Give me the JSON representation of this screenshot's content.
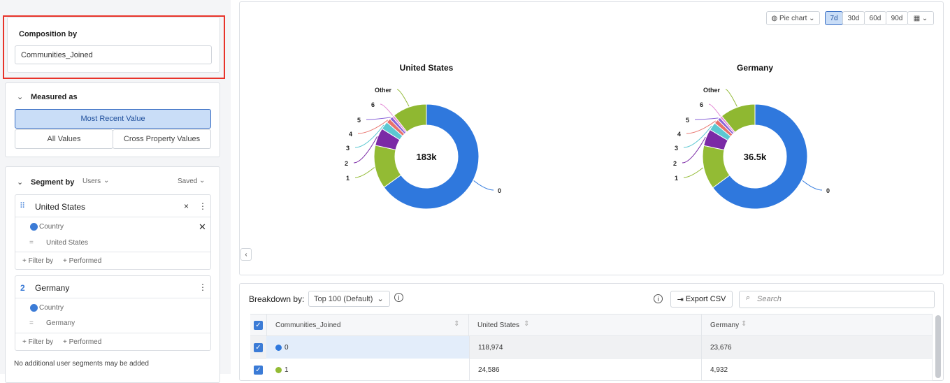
{
  "sidebar": {
    "composition": {
      "title": "Composition by",
      "property": "Communities_Joined"
    },
    "measured": {
      "title": "Measured as",
      "options": [
        "Most Recent Value",
        "All Values",
        "Cross Property Values"
      ],
      "selected": 0
    },
    "segment": {
      "title": "Segment by",
      "scope": "Users",
      "saved": "Saved",
      "segments": [
        {
          "name": "United States",
          "property": "Country",
          "operator": "=",
          "value": "United States",
          "actions": [
            "+ Filter by",
            "+ Performed"
          ]
        },
        {
          "number": "2",
          "name": "Germany",
          "property": "Country",
          "operator": "=",
          "value": "Germany",
          "actions": [
            "+ Filter by",
            "+ Performed"
          ]
        }
      ],
      "note": "No additional user segments may be added"
    }
  },
  "toolbar": {
    "chart_type": "Pie chart",
    "ranges": [
      "7d",
      "30d",
      "60d",
      "90d"
    ],
    "active_range": 0
  },
  "charts": [
    {
      "title": "United States",
      "total_label": "183k",
      "slices": [
        {
          "label": "0",
          "value": 118974,
          "color": "#2f78dd"
        },
        {
          "label": "1",
          "value": 24586,
          "color": "#93bb34"
        },
        {
          "label": "2",
          "value": 10000,
          "color": "#7b2aa6"
        },
        {
          "label": "3",
          "value": 4500,
          "color": "#5cc8d2"
        },
        {
          "label": "4",
          "value": 2500,
          "color": "#e8716b"
        },
        {
          "label": "5",
          "value": 1800,
          "color": "#8a63d8"
        },
        {
          "label": "6",
          "value": 1200,
          "color": "#e48ad6"
        },
        {
          "label": "Other",
          "value": 19440,
          "color": "#8fb831"
        }
      ]
    },
    {
      "title": "Germany",
      "total_label": "36.5k",
      "slices": [
        {
          "label": "0",
          "value": 23676,
          "color": "#2f78dd"
        },
        {
          "label": "1",
          "value": 4932,
          "color": "#93bb34"
        },
        {
          "label": "2",
          "value": 1900,
          "color": "#7b2aa6"
        },
        {
          "label": "3",
          "value": 900,
          "color": "#5cc8d2"
        },
        {
          "label": "4",
          "value": 500,
          "color": "#e8716b"
        },
        {
          "label": "5",
          "value": 350,
          "color": "#8a63d8"
        },
        {
          "label": "6",
          "value": 250,
          "color": "#e48ad6"
        },
        {
          "label": "Other",
          "value": 3992,
          "color": "#8fb831"
        }
      ]
    }
  ],
  "table": {
    "breakdown_label": "Breakdown by:",
    "breakdown": "Top 100 (Default)",
    "export": "Export CSV",
    "search_placeholder": "Search",
    "columns": [
      "Communities_Joined",
      "United States",
      "Germany"
    ],
    "rows": [
      [
        "0",
        "118,974",
        "23,676"
      ],
      [
        "1",
        "24,586",
        "4,932"
      ]
    ]
  }
}
